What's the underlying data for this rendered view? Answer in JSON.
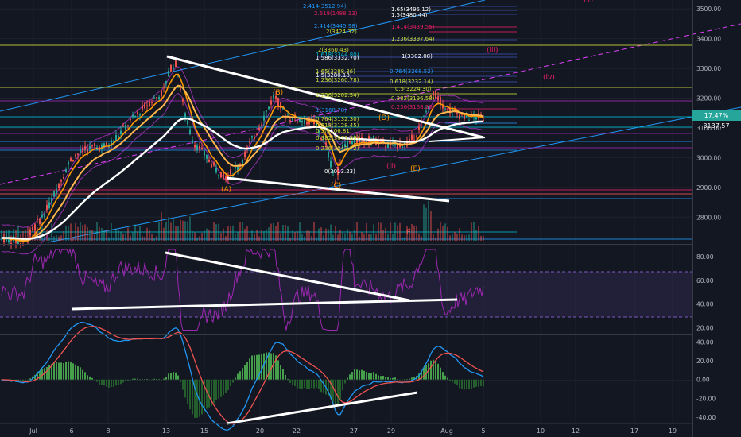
{
  "chart_data": [
    {
      "type": "candlestick",
      "panel": "price",
      "y_ticks": [
        3500,
        3400,
        3300,
        3200,
        3100,
        3000,
        2900,
        2800
      ],
      "ylim": [
        2710,
        3530
      ],
      "price_tag": {
        "percent": "17.47%",
        "price": "3137.57"
      },
      "fib_labels": [
        "2.414(3512.94)",
        "2.618(1488.13)",
        "2.414(3445.98)",
        "2(3424.32)",
        "1.65(3495.12)",
        "1.5(3480.44)",
        "1.414(3439.55)",
        "1.236(3397.64)",
        "2(3360.43)",
        "1.618(3344.80)",
        "1.586(3332.70)",
        "1(3302.08)",
        "1.65(3288.36)",
        "1.5(3280.18)",
        "1.236(3260.78)",
        "0.764(3268.52)",
        "0.618(3232.14)",
        "0.5(3224.30)",
        "0.382(3196.58)",
        "1.236(3202.54)",
        "1(3168.78)",
        "0.236(3168.26)",
        "0.764(3132.30)",
        "0.618(3128.45)",
        "0.5(3106.81)",
        "0.382(3077.89)",
        "0.236(3043.72)",
        "0(3013.23)"
      ],
      "wave_labels": [
        "(A)",
        "(B)",
        "(C)",
        "(D)",
        "(E)",
        "(ii)",
        "(iii)",
        "(iv)",
        "(v)",
        "E"
      ]
    },
    {
      "type": "line",
      "panel": "rsi",
      "y_ticks": [
        80,
        60,
        40,
        20
      ],
      "ylim": [
        15,
        90
      ],
      "band": [
        70,
        30
      ]
    },
    {
      "type": "histogram",
      "panel": "macd",
      "y_ticks": [
        40,
        20,
        0,
        -20,
        -40
      ],
      "ylim": [
        -46,
        48
      ]
    }
  ],
  "x_axis": {
    "ticks": [
      "Jul",
      "6",
      "8",
      "13",
      "15",
      "20",
      "22",
      "27",
      "29",
      "Aug",
      "5",
      "10",
      "12",
      "17",
      "19"
    ]
  },
  "colors": {
    "background": "#131722",
    "grid": "#1e222d",
    "up": "#26a69a",
    "down": "#ef5350",
    "rsi": "#9c27b0",
    "ema_fast": "#ff9800",
    "ema_slow": "#ffffff",
    "trendline": "#ffffff",
    "channel": "#2196f3",
    "wave_orange": "#ff9800",
    "wave_pink": "#e91e63"
  }
}
